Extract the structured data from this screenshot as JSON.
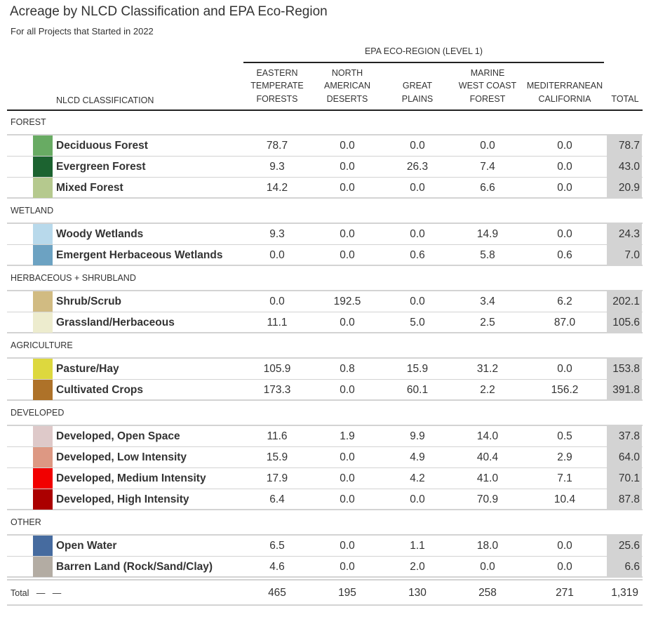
{
  "title": "Acreage by NLCD Classification and EPA Eco-Region",
  "subtitle": "For all Projects that Started in 2022",
  "spanner_label": "EPA ECO-REGION (LEVEL 1)",
  "nlcd_header": "NLCD CLASSIFICATION",
  "columns": [
    "EASTERN\nTEMPERATE\nFORESTS",
    "NORTH\nAMERICAN\nDESERTS",
    "GREAT\nPLAINS",
    "MARINE\nWEST COAST\nFOREST",
    "MEDITERRANEAN\nCALIFORNIA",
    "TOTAL"
  ],
  "groups": [
    {
      "label": "FOREST",
      "rows": [
        {
          "name": "Deciduous Forest",
          "color": "#68ab63",
          "values": [
            "78.7",
            "0.0",
            "0.0",
            "0.0",
            "0.0"
          ],
          "total": "78.7"
        },
        {
          "name": "Evergreen Forest",
          "color": "#1c6330",
          "values": [
            "9.3",
            "0.0",
            "26.3",
            "7.4",
            "0.0"
          ],
          "total": "43.0"
        },
        {
          "name": "Mixed Forest",
          "color": "#b5c98e",
          "values": [
            "14.2",
            "0.0",
            "0.0",
            "6.6",
            "0.0"
          ],
          "total": "20.9"
        }
      ]
    },
    {
      "label": "WETLAND",
      "rows": [
        {
          "name": "Woody Wetlands",
          "color": "#b8d9eb",
          "values": [
            "9.3",
            "0.0",
            "0.0",
            "14.9",
            "0.0"
          ],
          "total": "24.3"
        },
        {
          "name": "Emergent Herbaceous Wetlands",
          "color": "#6ca2c2",
          "values": [
            "0.0",
            "0.0",
            "0.6",
            "5.8",
            "0.6"
          ],
          "total": "7.0"
        }
      ]
    },
    {
      "label": "HERBACEOUS + SHRUBLAND",
      "rows": [
        {
          "name": "Shrub/Scrub",
          "color": "#d1bb82",
          "values": [
            "0.0",
            "192.5",
            "0.0",
            "3.4",
            "6.2"
          ],
          "total": "202.1"
        },
        {
          "name": "Grassland/Herbaceous",
          "color": "#edecce",
          "values": [
            "11.1",
            "0.0",
            "5.0",
            "2.5",
            "87.0"
          ],
          "total": "105.6"
        }
      ]
    },
    {
      "label": "AGRICULTURE",
      "rows": [
        {
          "name": "Pasture/Hay",
          "color": "#ddd83e",
          "values": [
            "105.9",
            "0.8",
            "15.9",
            "31.2",
            "0.0"
          ],
          "total": "153.8"
        },
        {
          "name": "Cultivated Crops",
          "color": "#ae7229",
          "values": [
            "173.3",
            "0.0",
            "60.1",
            "2.2",
            "156.2"
          ],
          "total": "391.8"
        }
      ]
    },
    {
      "label": "DEVELOPED",
      "rows": [
        {
          "name": "Developed, Open Space",
          "color": "#dec9c9",
          "values": [
            "11.6",
            "1.9",
            "9.9",
            "14.0",
            "0.5"
          ],
          "total": "37.8"
        },
        {
          "name": "Developed, Low Intensity",
          "color": "#dd9883",
          "values": [
            "15.9",
            "0.0",
            "4.9",
            "40.4",
            "2.9"
          ],
          "total": "64.0"
        },
        {
          "name": "Developed, Medium Intensity",
          "color": "#f20000",
          "values": [
            "17.9",
            "0.0",
            "4.2",
            "41.0",
            "7.1"
          ],
          "total": "70.1"
        },
        {
          "name": "Developed, High Intensity",
          "color": "#ab0000",
          "values": [
            "6.4",
            "0.0",
            "0.0",
            "70.9",
            "10.4"
          ],
          "total": "87.8"
        }
      ]
    },
    {
      "label": "OTHER",
      "rows": [
        {
          "name": "Open Water",
          "color": "#466b9f",
          "values": [
            "6.5",
            "0.0",
            "1.1",
            "18.0",
            "0.0"
          ],
          "total": "25.6"
        },
        {
          "name": "Barren Land (Rock/Sand/Clay)",
          "color": "#b3aca3",
          "values": [
            "4.6",
            "0.0",
            "2.0",
            "0.0",
            "0.0"
          ],
          "total": "6.6"
        }
      ]
    }
  ],
  "summary": {
    "label": "Total",
    "dash1": "—",
    "dash2": "—",
    "values": [
      "465",
      "195",
      "130",
      "258",
      "271"
    ],
    "total": "1,319"
  }
}
